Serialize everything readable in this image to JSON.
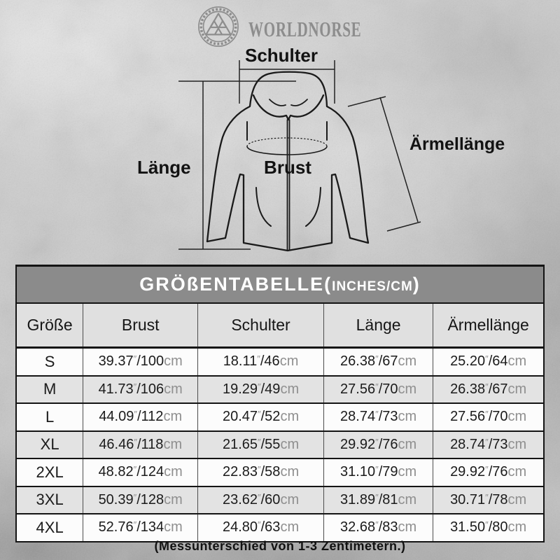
{
  "brand": {
    "wordmark": "WORLDNORSE",
    "emblem_icon": "valknut-ring-emblem"
  },
  "diagram": {
    "shoulder_label": "Schulter",
    "length_label": "Länge",
    "chest_label": "Brust",
    "sleeve_label": "Ärmellänge"
  },
  "table": {
    "title_main": "GRÖßENTABELLE(",
    "title_sub": "INCHES/CM",
    "title_close": ")",
    "columns": [
      "Größe",
      "Brust",
      "Schulter",
      "Länge",
      "Ärmellänge"
    ],
    "units": {
      "inch": "″",
      "slash": "/",
      "cm": "cm"
    },
    "rows": [
      {
        "size": "S",
        "brust": {
          "in": "39.37",
          "cm": "100"
        },
        "schulter": {
          "in": "18.11",
          "cm": "46"
        },
        "laenge": {
          "in": "26.38",
          "cm": "67"
        },
        "aermellaenge": {
          "in": "25.20",
          "cm": "64"
        }
      },
      {
        "size": "M",
        "brust": {
          "in": "41.73",
          "cm": "106"
        },
        "schulter": {
          "in": "19.29",
          "cm": "49"
        },
        "laenge": {
          "in": "27.56",
          "cm": "70"
        },
        "aermellaenge": {
          "in": "26.38",
          "cm": "67"
        }
      },
      {
        "size": "L",
        "brust": {
          "in": "44.09",
          "cm": "112"
        },
        "schulter": {
          "in": "20.47",
          "cm": "52"
        },
        "laenge": {
          "in": "28.74",
          "cm": "73"
        },
        "aermellaenge": {
          "in": "27.56",
          "cm": "70"
        }
      },
      {
        "size": "XL",
        "brust": {
          "in": "46.46",
          "cm": "118"
        },
        "schulter": {
          "in": "21.65",
          "cm": "55"
        },
        "laenge": {
          "in": "29.92",
          "cm": "76"
        },
        "aermellaenge": {
          "in": "28.74",
          "cm": "73"
        }
      },
      {
        "size": "2XL",
        "brust": {
          "in": "48.82",
          "cm": "124"
        },
        "schulter": {
          "in": "22.83",
          "cm": "58"
        },
        "laenge": {
          "in": "31.10",
          "cm": "79"
        },
        "aermellaenge": {
          "in": "29.92",
          "cm": "76"
        }
      },
      {
        "size": "3XL",
        "brust": {
          "in": "50.39",
          "cm": "128"
        },
        "schulter": {
          "in": "23.62",
          "cm": "60"
        },
        "laenge": {
          "in": "31.89",
          "cm": "81"
        },
        "aermellaenge": {
          "in": "30.71",
          "cm": "78"
        }
      },
      {
        "size": "4XL",
        "brust": {
          "in": "52.76",
          "cm": "134"
        },
        "schulter": {
          "in": "24.80",
          "cm": "63"
        },
        "laenge": {
          "in": "32.68",
          "cm": "83"
        },
        "aermellaenge": {
          "in": "31.50",
          "cm": "80"
        }
      }
    ]
  },
  "footnote": "(Messunterschied von 1-3 Zentimetern.)",
  "colors": {
    "title_bar_bg": "#8b8b8b",
    "header_row_bg": "#e0e0e0",
    "row_alt_bg": "#e3e3e3",
    "row_bg": "#fcfcfc",
    "border_dark": "#141414",
    "unit_grey": "#8f8f8f",
    "logo_grey": "#8d8d8d",
    "background_grey": "#c9c9c9"
  }
}
